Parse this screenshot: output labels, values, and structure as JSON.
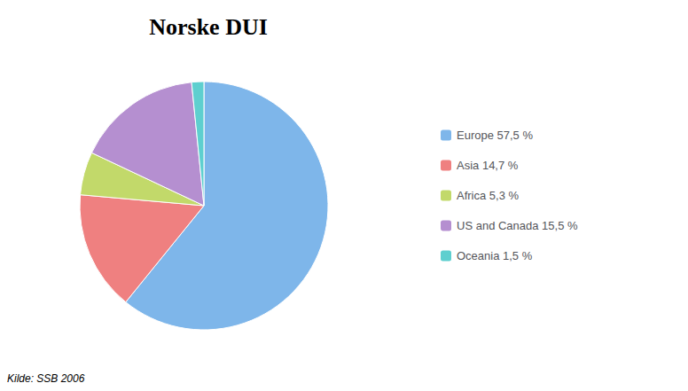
{
  "chart_data": {
    "type": "pie",
    "title": "Norske DUI",
    "categories": [
      "Europe 57,5 %",
      "Asia 14,7 %",
      "Africa 5,3 %",
      "US and Canada 15,5 %",
      "Oceania 1,5 %"
    ],
    "values": [
      57.5,
      14.7,
      5.3,
      15.5,
      1.5
    ],
    "colors": [
      "#7EB6EA",
      "#EF8080",
      "#C2D96A",
      "#B58FD0",
      "#5ECFCF"
    ],
    "source": "Kilde: SSB 2006",
    "legend": "right"
  }
}
